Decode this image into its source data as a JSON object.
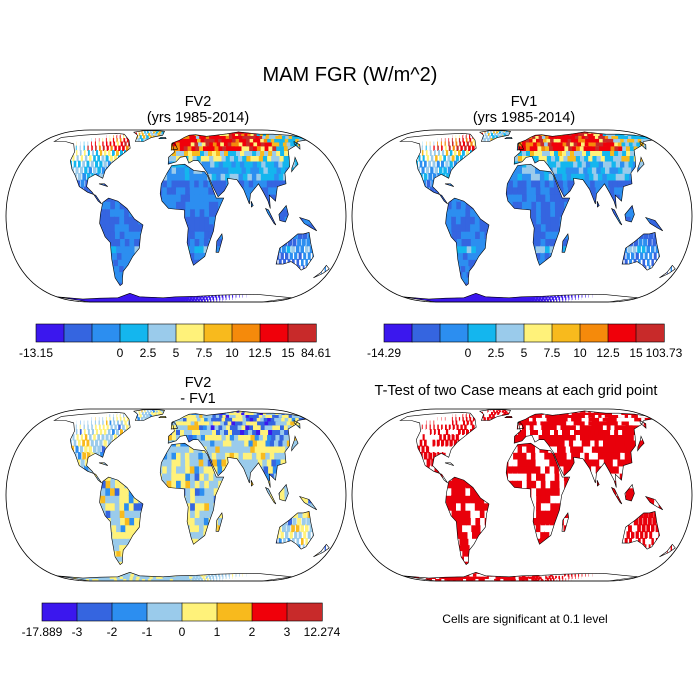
{
  "figure": {
    "title": "MAM FGR (W/m^2)",
    "note": "Cells are significant at 0.1 level"
  },
  "colors": {
    "ocean": "#ffffff",
    "coast": "#000000",
    "significant": "#e8000b"
  },
  "chart_data": [
    {
      "type": "heatmap",
      "projection": "robinson",
      "title": "FV2",
      "subtitle": "(yrs 1985-2014)",
      "colorbar": {
        "labels": [
          "-13.15",
          "0",
          "2.5",
          "5",
          "7.5",
          "10",
          "12.5",
          "15",
          "84.61"
        ],
        "colors": [
          "#3b17ee",
          "#3565e0",
          "#2c8ef0",
          "#14b6ee",
          "#9acbeb",
          "#fff27a",
          "#f8ba1d",
          "#f58a0b",
          "#f0000a",
          "#c82a2a"
        ]
      },
      "regions": [
        {
          "region": "Canada",
          "level": "high"
        },
        {
          "region": "Siberia",
          "level": "high"
        },
        {
          "region": "Scandinavia",
          "level": "high"
        },
        {
          "region": "Tropics",
          "level": "low"
        },
        {
          "region": "Antarctica",
          "level": "lowest"
        }
      ]
    },
    {
      "type": "heatmap",
      "projection": "robinson",
      "title": "FV1",
      "subtitle": "(yrs 1985-2014)",
      "colorbar": {
        "labels": [
          "-14.29",
          "0",
          "2.5",
          "5",
          "7.5",
          "10",
          "12.5",
          "15",
          "103.73"
        ],
        "colors": [
          "#3b17ee",
          "#3565e0",
          "#2c8ef0",
          "#14b6ee",
          "#9acbeb",
          "#fff27a",
          "#f8ba1d",
          "#f58a0b",
          "#f0000a",
          "#c82a2a"
        ]
      },
      "regions": [
        {
          "region": "Canada",
          "level": "high"
        },
        {
          "region": "Siberia",
          "level": "high"
        },
        {
          "region": "Scandinavia",
          "level": "high"
        },
        {
          "region": "Tropics",
          "level": "low"
        },
        {
          "region": "Antarctica",
          "level": "lowest"
        }
      ]
    },
    {
      "type": "heatmap",
      "projection": "robinson",
      "title": "FV2",
      "subtitle": "- FV1",
      "colorbar": {
        "labels": [
          "-17.889",
          "-3",
          "-2",
          "-1",
          "0",
          "1",
          "2",
          "3",
          "12.274"
        ],
        "colors": [
          "#3b17ee",
          "#3565e0",
          "#2c8ef0",
          "#9acbeb",
          "#fff27a",
          "#f8ba1d",
          "#f0000a",
          "#c82a2a"
        ]
      },
      "regions": [
        {
          "region": "Northern Asia",
          "level": "negative"
        },
        {
          "region": "North America",
          "level": "mixed"
        },
        {
          "region": "Africa",
          "level": "mixed"
        },
        {
          "region": "South America",
          "level": "near-zero"
        },
        {
          "region": "Antarctica",
          "level": "near-zero"
        }
      ]
    },
    {
      "type": "heatmap",
      "projection": "robinson",
      "title": "T-Test of two Case means at each grid point",
      "mask": "significant cells shown in red"
    }
  ]
}
